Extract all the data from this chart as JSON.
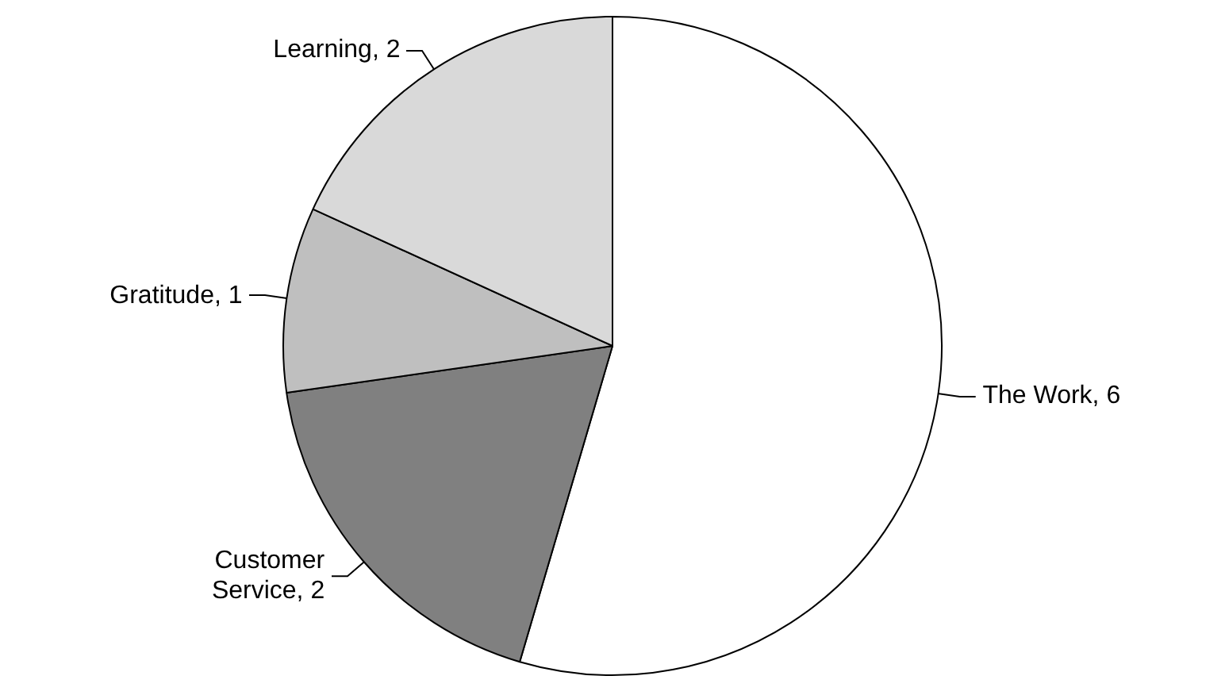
{
  "chart_data": {
    "type": "pie",
    "categories": [
      "The Work",
      "Customer Service",
      "Gratitude",
      "Learning"
    ],
    "values": [
      6,
      2,
      1,
      2
    ],
    "value_labels": [
      ", 6",
      ", 2",
      ", 1",
      ", 2"
    ],
    "colors": [
      "#ffffff",
      "#808080",
      "#bfbfbf",
      "#d9d9d9"
    ],
    "legend": false
  }
}
